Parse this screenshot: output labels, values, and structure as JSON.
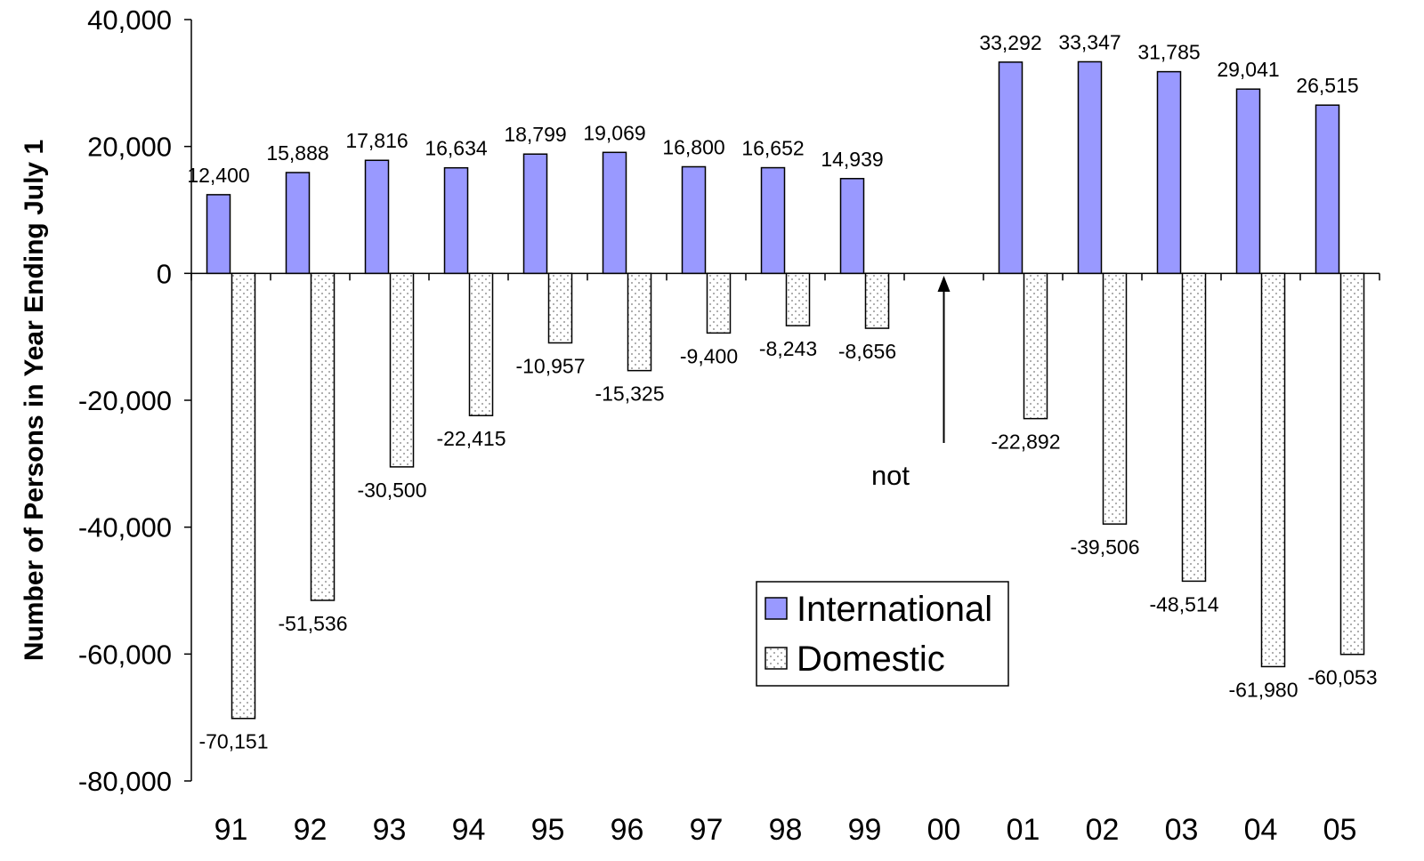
{
  "chart_data": {
    "type": "bar",
    "title": "",
    "xlabel": "",
    "ylabel": "Number of Persons in Year Ending July 1",
    "ylim": [
      -80000,
      40000
    ],
    "yticks": [
      40000,
      20000,
      0,
      -20000,
      -40000,
      -60000,
      -80000
    ],
    "ytick_labels": [
      "40,000",
      "20,000",
      "0",
      "-20,000",
      "-40,000",
      "-60,000",
      "-80,000"
    ],
    "categories": [
      "91",
      "92",
      "93",
      "94",
      "95",
      "96",
      "97",
      "98",
      "99",
      "00",
      "01",
      "02",
      "03",
      "04",
      "05"
    ],
    "series": [
      {
        "name": "International",
        "color": "#9999ff",
        "pattern": "solid",
        "values": [
          12400,
          15888,
          17816,
          16634,
          18799,
          19069,
          16800,
          16652,
          14939,
          null,
          33292,
          33347,
          31785,
          29041,
          26515
        ],
        "labels": [
          "12,400",
          "15,888",
          "17,816",
          "16,634",
          "18,799",
          "19,069",
          "16,800",
          "16,652",
          "14,939",
          "",
          "33,292",
          "33,347",
          "31,785",
          "29,041",
          "26,515"
        ]
      },
      {
        "name": "Domestic",
        "color": "#ffffff",
        "pattern": "dots",
        "values": [
          -70151,
          -51536,
          -30500,
          -22415,
          -10957,
          -15325,
          -9400,
          -8243,
          -8656,
          null,
          -22892,
          -39506,
          -48514,
          -61980,
          -60053
        ],
        "labels": [
          "-70,151",
          "-51,536",
          "-30,500",
          "-22,415",
          "-10,957",
          "-15,325",
          "-9,400",
          "-8,243",
          "-8,656",
          "",
          "-22,892",
          "-39,506",
          "-48,514",
          "-61,980",
          "-60,053"
        ]
      }
    ],
    "annotation": {
      "text": "not",
      "category": "00",
      "arrow": true
    },
    "legend": {
      "position": "lower-center",
      "entries": [
        "International",
        "Domestic"
      ]
    },
    "grid": false
  }
}
